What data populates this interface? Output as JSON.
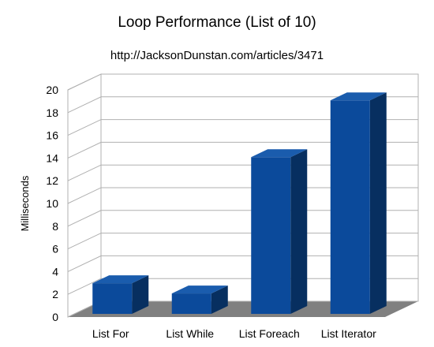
{
  "chart_data": {
    "type": "bar",
    "title": "Loop Performance (List of 10)",
    "subtitle": "http://JacksonDunstan.com/articles/3471",
    "xlabel": "",
    "ylabel": "Milliseconds",
    "categories": [
      "List For",
      "List While",
      "List Foreach",
      "List Iterator"
    ],
    "values": [
      2.7,
      1.8,
      13.8,
      18.8
    ],
    "ylim": [
      0,
      20
    ],
    "yticks": [
      0,
      2,
      4,
      6,
      8,
      10,
      12,
      14,
      16,
      18,
      20
    ],
    "grid": true,
    "legend": "none",
    "bar_color": "#0b4a9b",
    "bar_side_color": "#072f60",
    "bar_top_color": "#1a5cad",
    "floor_color": "#808080"
  }
}
